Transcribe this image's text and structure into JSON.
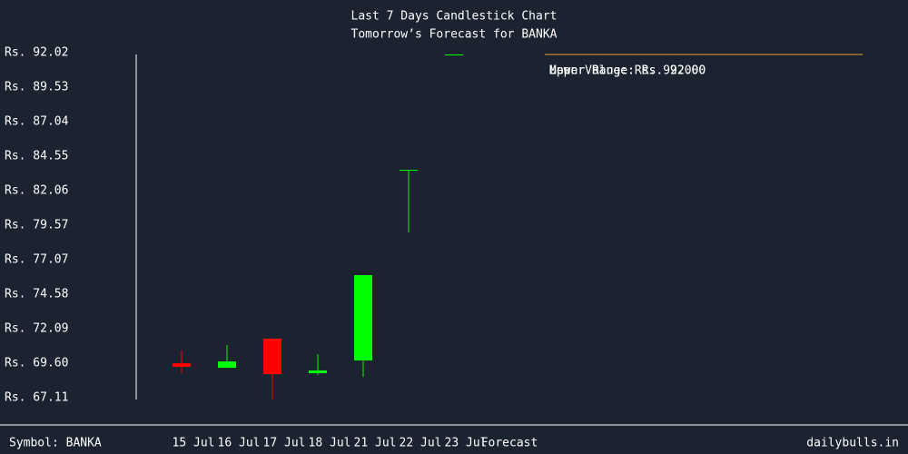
{
  "chart_data": {
    "type": "candlestick",
    "title": "Last 7 Days Candlestick Chart",
    "subtitle": "Tomorrow’s Forecast for BANKA",
    "categories": [
      "15 Jul",
      "16 Jul",
      "17 Jul",
      "18 Jul",
      "21 Jul",
      "22 Jul",
      "23 Jul",
      "Forecast"
    ],
    "open": [
      69.6,
      69.27,
      71.37,
      68.88,
      69.8,
      83.56,
      91.89,
      null
    ],
    "high": [
      70.52,
      70.91,
      71.37,
      70.26,
      75.96,
      83.56,
      91.89,
      null
    ],
    "low": [
      68.88,
      69.27,
      66.98,
      68.75,
      68.62,
      79.04,
      91.89,
      null
    ],
    "close": [
      69.34,
      69.73,
      68.81,
      69.08,
      75.96,
      83.56,
      91.89,
      null
    ],
    "up_color": "#00ff00",
    "down_color": "#ff0000",
    "forecast_line": 91.89,
    "forecast_color": "#f0a030",
    "annotations": [
      "Mean Value: Rs. 92.00",
      "Upper Range: Rs. 92.00",
      "Lower Range: Rs. 92.00"
    ],
    "ylim": [
      67.11,
      92.02
    ],
    "yticks": [
      {
        "value": 92.02,
        "label": "Rs. 92.02"
      },
      {
        "value": 89.53,
        "label": "Rs. 89.53"
      },
      {
        "value": 87.04,
        "label": "Rs. 87.04"
      },
      {
        "value": 84.55,
        "label": "Rs. 84.55"
      },
      {
        "value": 82.06,
        "label": "Rs. 82.06"
      },
      {
        "value": 79.57,
        "label": "Rs. 79.57"
      },
      {
        "value": 77.07,
        "label": "Rs. 77.07"
      },
      {
        "value": 74.58,
        "label": "Rs. 74.58"
      },
      {
        "value": 72.09,
        "label": "Rs. 72.09"
      },
      {
        "value": 69.6,
        "label": "Rs. 69.60"
      },
      {
        "value": 67.11,
        "label": "Rs. 67.11"
      }
    ],
    "symbol": "Symbol: BANKA",
    "source": "dailybulls.in"
  }
}
